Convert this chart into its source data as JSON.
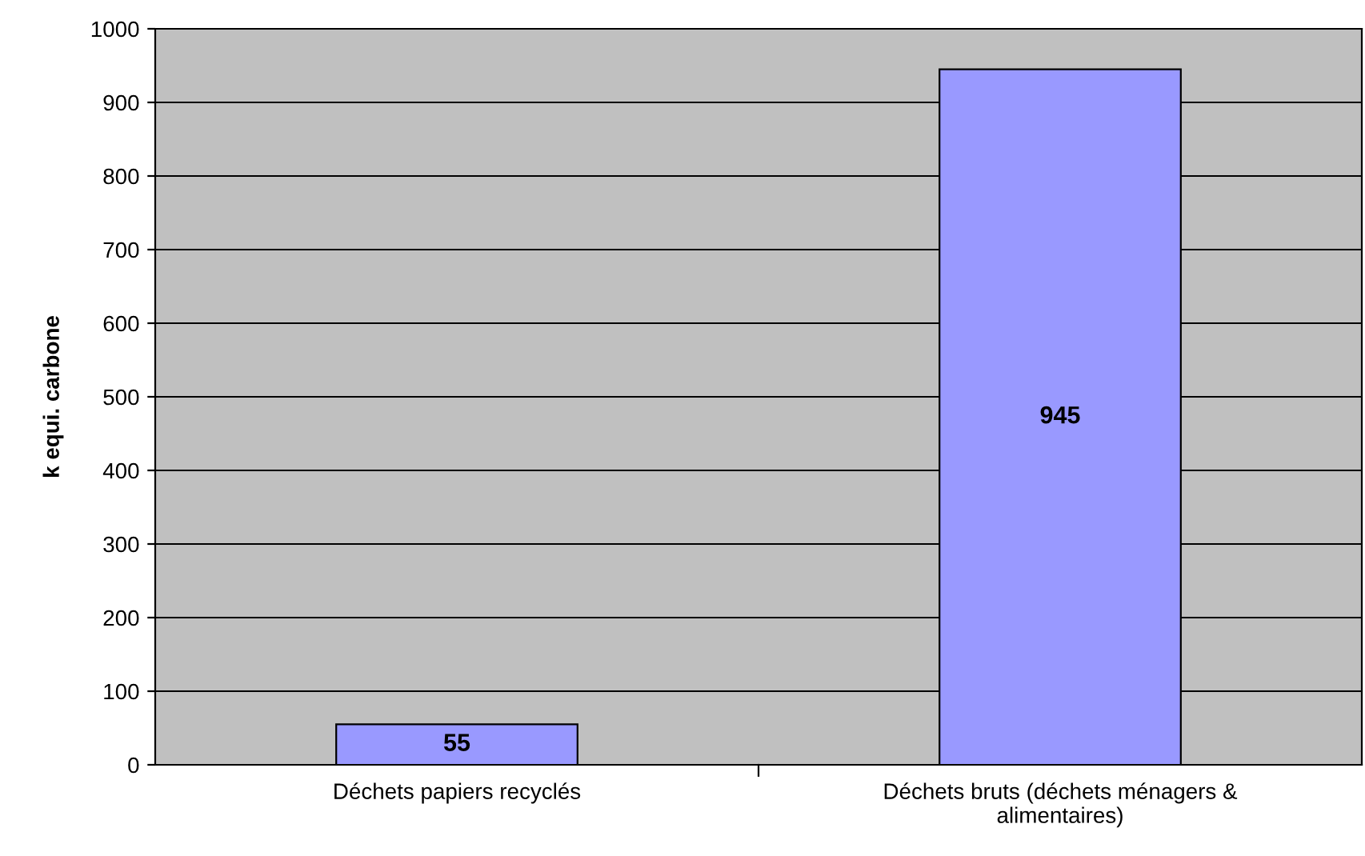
{
  "chart_data": {
    "type": "bar",
    "ylabel": "k equi. carbone",
    "categories": [
      "Déchets papiers recyclés",
      "Déchets bruts (déchets ménagers &\nalimentaires)"
    ],
    "values": [
      55,
      945
    ],
    "color": "#9999ff",
    "ylim": [
      0,
      1000
    ],
    "yticks": [
      0,
      100,
      200,
      300,
      400,
      500,
      600,
      700,
      800,
      900,
      1000
    ],
    "grid": "y",
    "data_labels": true
  }
}
